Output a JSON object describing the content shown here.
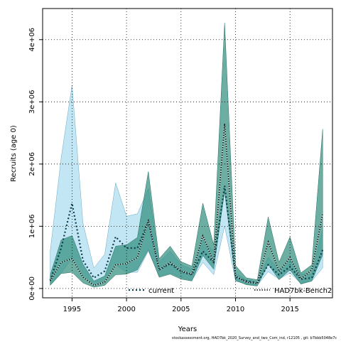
{
  "chart_data": {
    "type": "line",
    "title": "",
    "xlabel": "Years",
    "ylabel": "Recruits (age 0)",
    "xlim": [
      1992.3,
      2018.9
    ],
    "ylim": [
      -150000,
      4500000
    ],
    "x_ticks": [
      {
        "value": 1995,
        "label": "1995"
      },
      {
        "value": 2000,
        "label": "2000"
      },
      {
        "value": 2005,
        "label": "2005"
      },
      {
        "value": 2010,
        "label": "2010"
      },
      {
        "value": 2015,
        "label": "2015"
      }
    ],
    "y_ticks": [
      {
        "value": 0,
        "label": "0e+00"
      },
      {
        "value": 1000000,
        "label": "1e+06"
      },
      {
        "value": 2000000,
        "label": "2e+06"
      },
      {
        "value": 3000000,
        "label": "3e+06"
      },
      {
        "value": 4000000,
        "label": "4e+06"
      }
    ],
    "grid": true,
    "legend_position": "bottom",
    "series": [
      {
        "name": "current",
        "color": "#0a3d4d",
        "band_color": "#87ceeb",
        "x": [
          1993,
          1994,
          1995,
          1996,
          1997,
          1998,
          1999,
          2000,
          2001,
          2002,
          2003,
          2004,
          2005,
          2006,
          2007,
          2008,
          2009,
          2010,
          2011,
          2012,
          2013,
          2014,
          2015,
          2016,
          2017,
          2018
        ],
        "values": [
          130000,
          650000,
          1370000,
          450000,
          170000,
          280000,
          830000,
          650000,
          650000,
          1080000,
          300000,
          400000,
          270000,
          220000,
          600000,
          420000,
          1650000,
          180000,
          120000,
          90000,
          380000,
          220000,
          350000,
          150000,
          170000,
          620000
        ],
        "lower": [
          60000,
          250000,
          480000,
          180000,
          60000,
          120000,
          380000,
          260000,
          260000,
          600000,
          200000,
          250000,
          180000,
          130000,
          420000,
          220000,
          1000000,
          120000,
          70000,
          50000,
          270000,
          150000,
          250000,
          80000,
          120000,
          330000
        ],
        "upper": [
          600000,
          2100000,
          3270000,
          1050000,
          330000,
          550000,
          1700000,
          1160000,
          1200000,
          1600000,
          420000,
          600000,
          380000,
          310000,
          780000,
          600000,
          1580000,
          240000,
          140000,
          100000,
          500000,
          300000,
          460000,
          230000,
          230000,
          950000
        ]
      },
      {
        "name": "HAD7bk-Bench2",
        "color": "#000000",
        "band_color": "#2e8b7a",
        "x": [
          1993,
          1994,
          1995,
          1996,
          1997,
          1998,
          1999,
          2000,
          2001,
          2002,
          2003,
          2004,
          2005,
          2006,
          2007,
          2008,
          2009,
          2010,
          2011,
          2012,
          2013,
          2014,
          2015,
          2016,
          2017,
          2018
        ],
        "values": [
          120000,
          420000,
          480000,
          180000,
          50000,
          100000,
          380000,
          400000,
          500000,
          1100000,
          300000,
          420000,
          280000,
          230000,
          850000,
          420000,
          2650000,
          200000,
          100000,
          80000,
          750000,
          270000,
          500000,
          150000,
          300000,
          1200000
        ],
        "lower": [
          50000,
          240000,
          260000,
          90000,
          20000,
          50000,
          220000,
          230000,
          300000,
          620000,
          180000,
          230000,
          150000,
          120000,
          530000,
          310000,
          1570000,
          130000,
          60000,
          40000,
          390000,
          140000,
          300000,
          70000,
          120000,
          540000
        ],
        "upper": [
          220000,
          780000,
          850000,
          390000,
          120000,
          200000,
          680000,
          700000,
          820000,
          1880000,
          480000,
          680000,
          430000,
          360000,
          1370000,
          700000,
          4270000,
          370000,
          170000,
          140000,
          1150000,
          420000,
          830000,
          250000,
          380000,
          2560000
        ]
      }
    ],
    "footnote": "stockassessment.org, HAD7bk_2020_Survey_and_two_Com_ind, r12105 , git: b7bbb5048e7c"
  }
}
